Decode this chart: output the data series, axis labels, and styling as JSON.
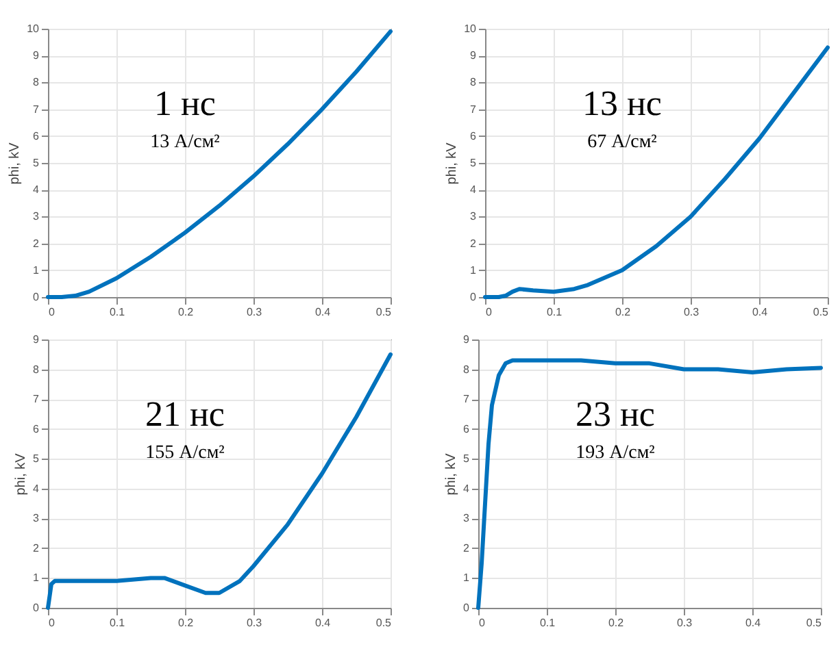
{
  "chart_data": [
    {
      "type": "line",
      "ylabel": "phi, kV",
      "annotations": [
        "1 нс",
        "13 А/см²"
      ],
      "xlim": [
        0,
        0.5
      ],
      "xticks": [
        0,
        0.1,
        0.2,
        0.3,
        0.4,
        0.5
      ],
      "ylim": [
        0,
        10
      ],
      "yticks": [
        0,
        1,
        2,
        3,
        4,
        5,
        6,
        7,
        8,
        9,
        10
      ],
      "grid": true,
      "series": [
        {
          "color": "#0072bd",
          "x": [
            0,
            0.02,
            0.04,
            0.06,
            0.1,
            0.15,
            0.2,
            0.25,
            0.3,
            0.35,
            0.4,
            0.45,
            0.5
          ],
          "values": [
            0,
            0,
            0.05,
            0.2,
            0.7,
            1.5,
            2.4,
            3.4,
            4.5,
            5.7,
            7,
            8.4,
            9.9
          ]
        }
      ]
    },
    {
      "type": "line",
      "ylabel": "phi, kV",
      "annotations": [
        "13 нс",
        "67 А/см²"
      ],
      "xlim": [
        0,
        0.5
      ],
      "xticks": [
        0,
        0.1,
        0.2,
        0.3,
        0.4,
        0.5
      ],
      "ylim": [
        0,
        10
      ],
      "yticks": [
        0,
        1,
        2,
        3,
        4,
        5,
        6,
        7,
        8,
        9,
        10
      ],
      "grid": true,
      "series": [
        {
          "color": "#0072bd",
          "x": [
            0,
            0.02,
            0.03,
            0.04,
            0.05,
            0.07,
            0.1,
            0.13,
            0.15,
            0.2,
            0.25,
            0.3,
            0.35,
            0.4,
            0.45,
            0.5
          ],
          "values": [
            0,
            0,
            0.05,
            0.2,
            0.3,
            0.25,
            0.2,
            0.3,
            0.45,
            1,
            1.9,
            3,
            4.4,
            5.9,
            7.6,
            9.3
          ]
        }
      ]
    },
    {
      "type": "line",
      "ylabel": "phi, kV",
      "annotations": [
        "21 нс",
        "155 А/см²"
      ],
      "xlim": [
        0,
        0.5
      ],
      "xticks": [
        0,
        0.1,
        0.2,
        0.3,
        0.4,
        0.5
      ],
      "ylim": [
        0,
        9
      ],
      "yticks": [
        0,
        1,
        2,
        3,
        4,
        5,
        6,
        7,
        8,
        9
      ],
      "grid": true,
      "series": [
        {
          "color": "#0072bd",
          "x": [
            0,
            0.005,
            0.01,
            0.05,
            0.1,
            0.15,
            0.17,
            0.2,
            0.23,
            0.25,
            0.28,
            0.3,
            0.35,
            0.4,
            0.45,
            0.5
          ],
          "values": [
            0,
            0.8,
            0.9,
            0.9,
            0.9,
            1,
            1,
            0.75,
            0.5,
            0.5,
            0.9,
            1.4,
            2.8,
            4.5,
            6.4,
            8.5
          ]
        }
      ]
    },
    {
      "type": "line",
      "ylabel": "phi, kV",
      "annotations": [
        "23 нс",
        "193 А/см²"
      ],
      "xlim": [
        0,
        0.5
      ],
      "xticks": [
        0,
        0.1,
        0.2,
        0.3,
        0.4,
        0.5
      ],
      "ylim": [
        0,
        9
      ],
      "yticks": [
        0,
        1,
        2,
        3,
        4,
        5,
        6,
        7,
        8,
        9
      ],
      "grid": true,
      "series": [
        {
          "color": "#0072bd",
          "x": [
            0,
            0.005,
            0.01,
            0.015,
            0.02,
            0.03,
            0.04,
            0.05,
            0.1,
            0.15,
            0.2,
            0.25,
            0.3,
            0.35,
            0.4,
            0.45,
            0.5
          ],
          "values": [
            0,
            1.5,
            3.5,
            5.5,
            6.8,
            7.8,
            8.2,
            8.3,
            8.3,
            8.3,
            8.2,
            8.2,
            8,
            8,
            7.9,
            8,
            8.05
          ]
        }
      ]
    }
  ]
}
